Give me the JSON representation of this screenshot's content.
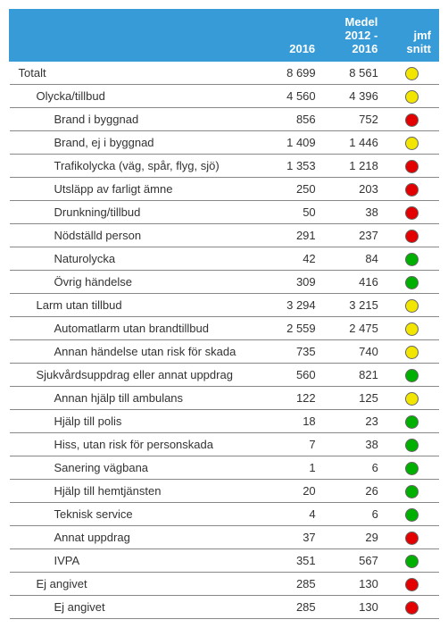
{
  "table": {
    "type": "table",
    "header_bg": "#369bd7",
    "header_color": "#ffffff",
    "border_color": "#888888",
    "dot_border": "#666666",
    "status_colors": {
      "yellow": "#f2e600",
      "red": "#e20000",
      "green": "#00b000"
    },
    "columns": [
      {
        "key": "label",
        "header": ""
      },
      {
        "key": "v2016",
        "header": "2016"
      },
      {
        "key": "avg",
        "header": "Medel 2012 - 2016"
      },
      {
        "key": "status",
        "header": "jmf snitt"
      }
    ],
    "rows": [
      {
        "label": "Totalt",
        "indent": 0,
        "v2016": "8 699",
        "avg": "8 561",
        "status": "yellow"
      },
      {
        "label": "Olycka/tillbud",
        "indent": 1,
        "v2016": "4 560",
        "avg": "4 396",
        "status": "yellow"
      },
      {
        "label": "Brand i byggnad",
        "indent": 2,
        "v2016": "856",
        "avg": "752",
        "status": "red"
      },
      {
        "label": "Brand, ej i byggnad",
        "indent": 2,
        "v2016": "1 409",
        "avg": "1 446",
        "status": "yellow"
      },
      {
        "label": "Trafikolycka (väg, spår, flyg, sjö)",
        "indent": 2,
        "v2016": "1 353",
        "avg": "1 218",
        "status": "red"
      },
      {
        "label": "Utsläpp av farligt ämne",
        "indent": 2,
        "v2016": "250",
        "avg": "203",
        "status": "red"
      },
      {
        "label": "Drunkning/tillbud",
        "indent": 2,
        "v2016": "50",
        "avg": "38",
        "status": "red"
      },
      {
        "label": "Nödställd person",
        "indent": 2,
        "v2016": "291",
        "avg": "237",
        "status": "red"
      },
      {
        "label": "Naturolycka",
        "indent": 2,
        "v2016": "42",
        "avg": "84",
        "status": "green"
      },
      {
        "label": "Övrig händelse",
        "indent": 2,
        "v2016": "309",
        "avg": "416",
        "status": "green"
      },
      {
        "label": "Larm utan tillbud",
        "indent": 1,
        "v2016": "3 294",
        "avg": "3 215",
        "status": "yellow"
      },
      {
        "label": "Automatlarm utan brandtillbud",
        "indent": 2,
        "v2016": "2 559",
        "avg": "2 475",
        "status": "yellow"
      },
      {
        "label": "Annan händelse utan risk för skada",
        "indent": 2,
        "v2016": "735",
        "avg": "740",
        "status": "yellow"
      },
      {
        "label": "Sjukvårdsuppdrag eller annat uppdrag",
        "indent": 1,
        "v2016": "560",
        "avg": "821",
        "status": "green"
      },
      {
        "label": "Annan hjälp till ambulans",
        "indent": 2,
        "v2016": "122",
        "avg": "125",
        "status": "yellow"
      },
      {
        "label": "Hjälp till polis",
        "indent": 2,
        "v2016": "18",
        "avg": "23",
        "status": "green"
      },
      {
        "label": "Hiss, utan risk för personskada",
        "indent": 2,
        "v2016": "7",
        "avg": "38",
        "status": "green"
      },
      {
        "label": "Sanering vägbana",
        "indent": 2,
        "v2016": "1",
        "avg": "6",
        "status": "green"
      },
      {
        "label": "Hjälp till hemtjänsten",
        "indent": 2,
        "v2016": "20",
        "avg": "26",
        "status": "green"
      },
      {
        "label": "Teknisk service",
        "indent": 2,
        "v2016": "4",
        "avg": "6",
        "status": "green"
      },
      {
        "label": "Annat uppdrag",
        "indent": 2,
        "v2016": "37",
        "avg": "29",
        "status": "red"
      },
      {
        "label": "IVPA",
        "indent": 2,
        "v2016": "351",
        "avg": "567",
        "status": "green"
      },
      {
        "label": "Ej angivet",
        "indent": 1,
        "v2016": "285",
        "avg": "130",
        "status": "red"
      },
      {
        "label": "Ej angivet",
        "indent": 2,
        "v2016": "285",
        "avg": "130",
        "status": "red"
      }
    ]
  }
}
